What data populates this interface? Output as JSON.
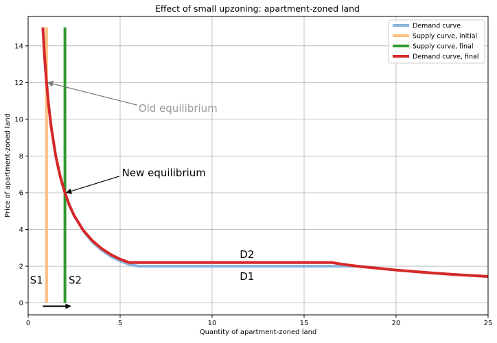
{
  "chart_data": {
    "type": "line",
    "title": "Effect of small upzoning: apartment-zoned land",
    "xlabel": "Quantity of apartment-zoned land",
    "ylabel": "Price of apartment-zoned land",
    "xlim": [
      0,
      25
    ],
    "ylim": [
      -0.65,
      15.6
    ],
    "xticks": [
      0,
      5,
      10,
      15,
      20,
      25
    ],
    "yticks": [
      0,
      2,
      4,
      6,
      8,
      10,
      12,
      14
    ],
    "grid": true,
    "legend_position": "top-right",
    "series": [
      {
        "name": "Demand curve",
        "color": "#8ab4dc",
        "x": [
          0.8,
          0.9,
          1.0,
          1.1,
          1.25,
          1.5,
          1.75,
          2.0,
          2.25,
          2.5,
          3.0,
          3.5,
          4.0,
          4.5,
          5.0,
          5.5,
          6.0,
          7,
          8,
          9,
          10,
          11,
          12,
          13,
          14,
          15,
          16,
          17,
          18,
          19,
          20,
          21,
          22,
          23,
          24,
          25
        ],
        "y": [
          15.0,
          13.3,
          12.0,
          10.9,
          9.6,
          8.0,
          6.86,
          6.0,
          5.3,
          4.76,
          3.92,
          3.31,
          2.87,
          2.53,
          2.28,
          2.1,
          2.0,
          2.0,
          2.0,
          2.0,
          2.0,
          2.0,
          2.0,
          2.0,
          2.0,
          2.0,
          2.0,
          2.0,
          2.0,
          1.89,
          1.79,
          1.71,
          1.63,
          1.56,
          1.5,
          1.44
        ]
      },
      {
        "name": "Supply curve, initial",
        "color": "#ffbf7f",
        "x": [
          1,
          1
        ],
        "y": [
          0,
          15
        ]
      },
      {
        "name": "Supply curve, final",
        "color": "#2e9a2e",
        "x": [
          2,
          2
        ],
        "y": [
          0,
          15
        ]
      },
      {
        "name": "Demand curve, final",
        "color": "#d62828",
        "x": [
          0.8,
          0.9,
          1.0,
          1.1,
          1.25,
          1.5,
          1.75,
          2.0,
          2.25,
          2.5,
          3.0,
          3.5,
          4.0,
          4.5,
          5.0,
          5.5,
          6,
          7,
          8,
          9,
          10,
          11,
          12,
          13,
          14,
          15,
          16,
          16.5,
          17,
          18,
          19,
          20,
          21,
          22,
          23,
          24,
          25
        ],
        "y": [
          15.0,
          13.3,
          12.0,
          10.9,
          9.6,
          8.0,
          6.86,
          6.0,
          5.3,
          4.76,
          3.95,
          3.38,
          2.96,
          2.63,
          2.38,
          2.2,
          2.2,
          2.2,
          2.2,
          2.2,
          2.2,
          2.2,
          2.2,
          2.2,
          2.2,
          2.2,
          2.2,
          2.2,
          2.12,
          1.99,
          1.89,
          1.79,
          1.71,
          1.63,
          1.56,
          1.5,
          1.44
        ]
      }
    ],
    "annotations": [
      {
        "text": "Old equilibrium",
        "x": 6.0,
        "y": 10.4,
        "point": [
          1,
          12
        ],
        "color": "#999999"
      },
      {
        "text": "New equilibrium",
        "x": 5.1,
        "y": 6.9,
        "point": [
          2,
          6
        ],
        "color": "#000000"
      },
      {
        "text": "S1",
        "x": 0.1,
        "y": 1.05,
        "color": "#000000"
      },
      {
        "text": "S2",
        "x": 2.2,
        "y": 1.05,
        "color": "#000000"
      },
      {
        "text": "D1",
        "x": 11.5,
        "y": 1.25,
        "color": "#000000"
      },
      {
        "text": "D2",
        "x": 11.5,
        "y": 2.45,
        "color": "#000000"
      }
    ],
    "shift_arrow": {
      "from": [
        0.8,
        -0.18
      ],
      "to": [
        2.3,
        -0.18
      ],
      "color": "#000000"
    }
  }
}
